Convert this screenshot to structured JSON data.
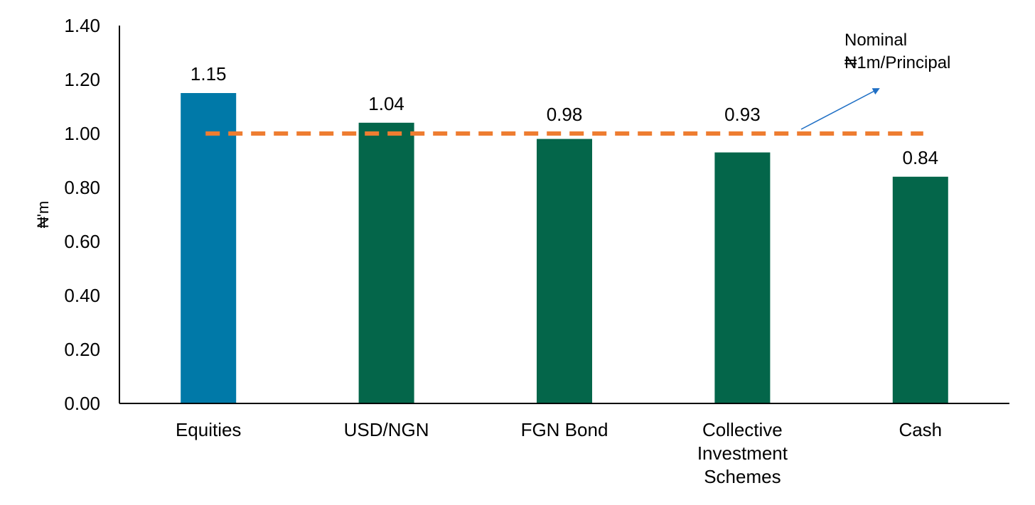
{
  "chart_data": {
    "type": "bar",
    "title": "",
    "xlabel": "",
    "ylabel": "₦'m",
    "ylim": [
      0,
      1.4
    ],
    "yticks": [
      "0.00",
      "0.20",
      "0.40",
      "0.60",
      "0.80",
      "1.00",
      "1.20",
      "1.40"
    ],
    "grid": false,
    "legend": "none",
    "categories": [
      [
        "Equities"
      ],
      [
        "USD/NGN"
      ],
      [
        "FGN Bond"
      ],
      [
        "Collective",
        "Investment",
        "Schemes"
      ],
      [
        "Cash"
      ]
    ],
    "values": [
      1.15,
      1.04,
      0.98,
      0.93,
      0.84
    ],
    "data_labels": [
      "1.15",
      "1.04",
      "0.98",
      "0.93",
      "0.84"
    ],
    "bar_colors": [
      "#0079a8",
      "#04664a",
      "#04664a",
      "#04664a",
      "#04664a"
    ],
    "reference_line": {
      "value": 1.0,
      "color": "#ee7d31",
      "style": "dashed"
    },
    "annotation": {
      "lines": [
        "Nominal",
        "₦1m/Principal"
      ],
      "arrow_color": "#1f6fc5"
    }
  }
}
